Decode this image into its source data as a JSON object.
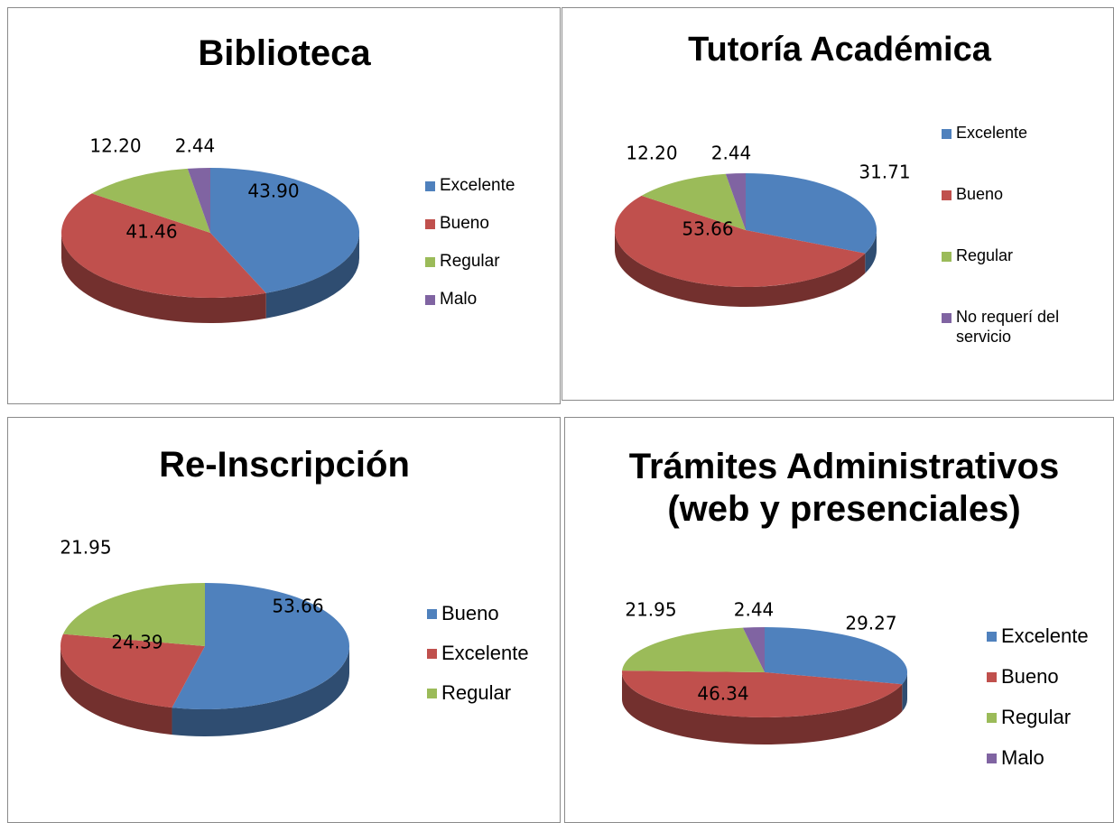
{
  "chart_data": [
    {
      "type": "pie",
      "title": "Biblioteca",
      "categories": [
        "Excelente",
        "Bueno",
        "Regular",
        "Malo"
      ],
      "values": [
        43.9,
        41.46,
        12.2,
        2.44
      ],
      "value_labels": [
        "43.90",
        "41.46",
        "12.20",
        "2.44"
      ],
      "colors": [
        "#4f81bd",
        "#c0504d",
        "#9bbb59",
        "#8064a2"
      ]
    },
    {
      "type": "pie",
      "title": "Tutoría Académica",
      "categories": [
        "Excelente",
        "Bueno",
        "Regular",
        "No requerí del servicio"
      ],
      "values": [
        31.71,
        53.66,
        12.2,
        2.44
      ],
      "value_labels": [
        "31.71",
        "53.66",
        "12.20",
        "2.44"
      ],
      "colors": [
        "#4f81bd",
        "#c0504d",
        "#9bbb59",
        "#8064a2"
      ]
    },
    {
      "type": "pie",
      "title": "Re-Inscripción",
      "categories": [
        "Bueno",
        "Excelente",
        "Regular"
      ],
      "values": [
        53.66,
        24.39,
        21.95
      ],
      "value_labels": [
        "53.66",
        "24.39",
        "21.95"
      ],
      "colors": [
        "#4f81bd",
        "#c0504d",
        "#9bbb59"
      ]
    },
    {
      "type": "pie",
      "title": "Trámites Administrativos (web y presenciales)",
      "categories": [
        "Excelente",
        "Bueno",
        "Regular",
        "Malo"
      ],
      "values": [
        29.27,
        46.34,
        21.95,
        2.44
      ],
      "value_labels": [
        "29.27",
        "46.34",
        "21.95",
        "2.44"
      ],
      "colors": [
        "#4f81bd",
        "#c0504d",
        "#9bbb59",
        "#8064a2"
      ]
    }
  ]
}
